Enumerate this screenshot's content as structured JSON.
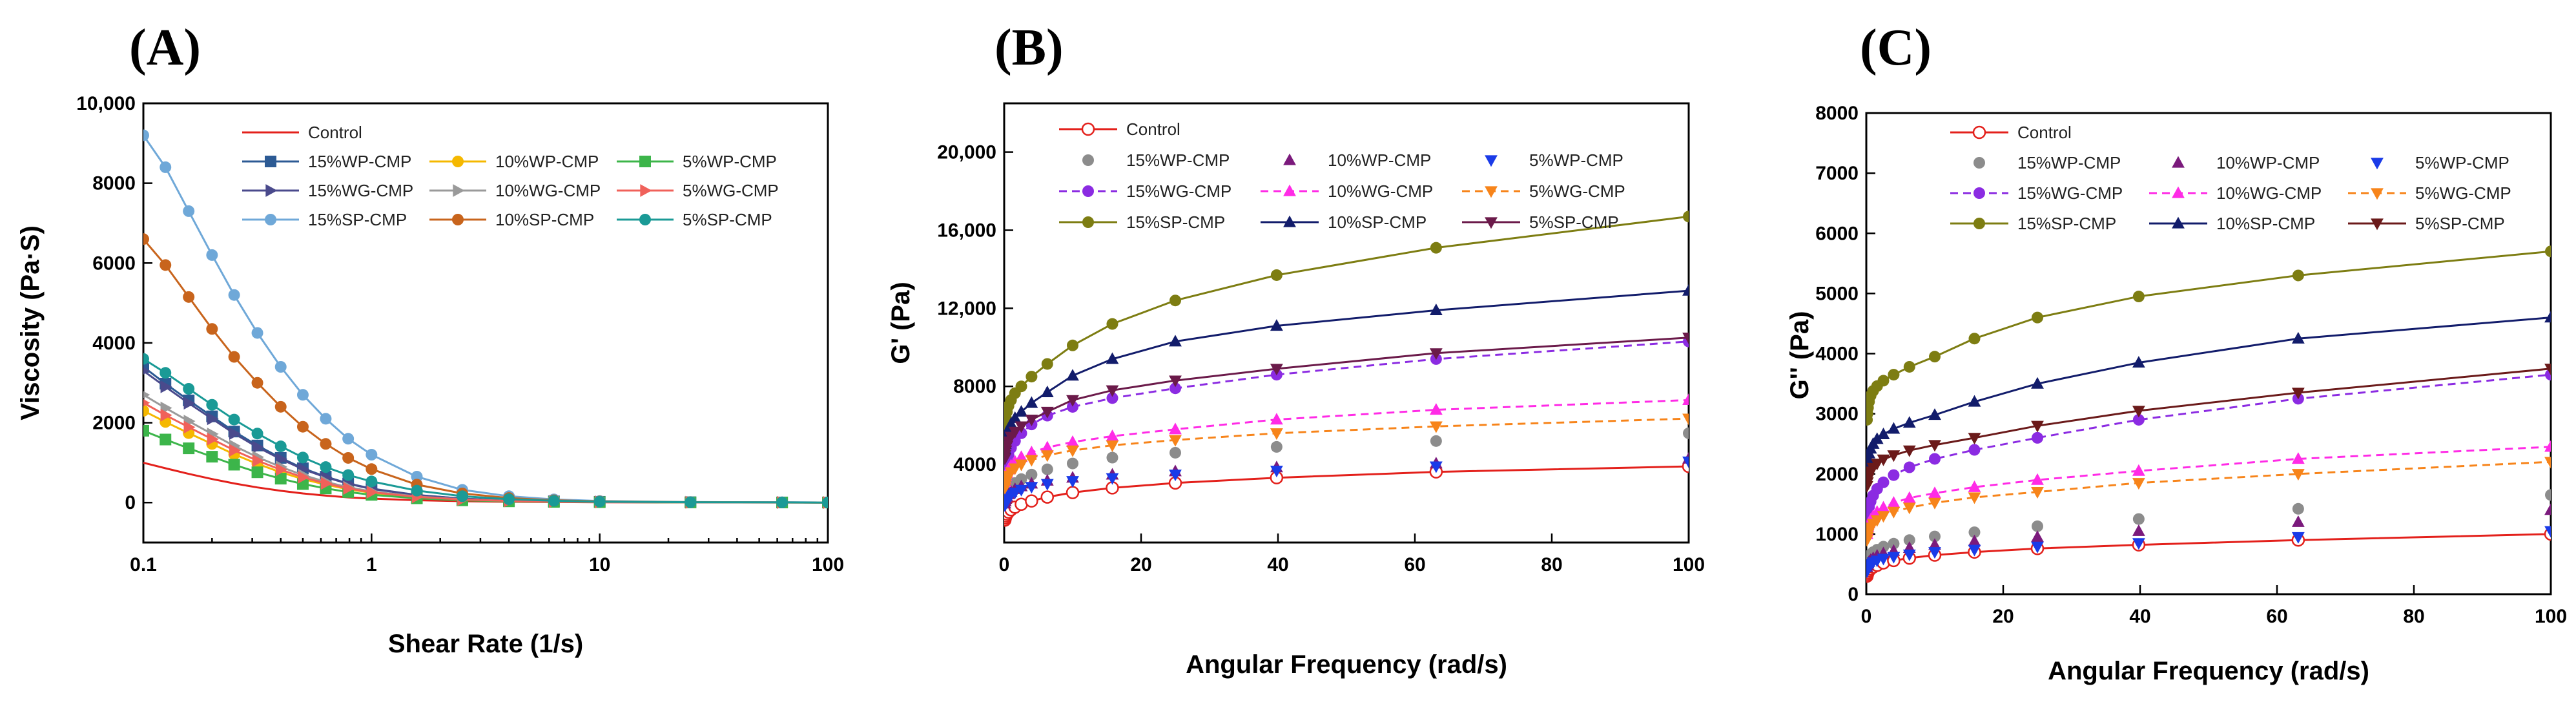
{
  "chart_data": [
    {
      "panel": "(A)",
      "type": "line",
      "xscale": "log",
      "xlabel": "Shear Rate (1/s)",
      "ylabel": "Viscosity (Pa·S)",
      "xlim": [
        0.1,
        100
      ],
      "ylim": [
        -1000,
        10000
      ],
      "xticks": [
        {
          "v": 0.1,
          "label": "0.1"
        },
        {
          "v": 1,
          "label": "1"
        },
        {
          "v": 10,
          "label": "10"
        },
        {
          "v": 100,
          "label": "100"
        }
      ],
      "yticks": [
        {
          "v": 0,
          "label": "0"
        },
        {
          "v": 2000,
          "label": "2000"
        },
        {
          "v": 4000,
          "label": "4000"
        },
        {
          "v": 6000,
          "label": "6000"
        },
        {
          "v": 8000,
          "label": "8000"
        },
        {
          "v": 10000,
          "label": "10,000"
        }
      ],
      "legend_position": "top-center",
      "x": [
        0.1,
        0.125,
        0.158,
        0.2,
        0.25,
        0.316,
        0.4,
        0.5,
        0.63,
        0.79,
        1.0,
        1.58,
        2.5,
        4.0,
        6.3,
        10,
        25,
        63,
        100
      ],
      "series": [
        {
          "name": "Control",
          "color": "#e3201b",
          "marker": "none",
          "values": [
            1000,
            860,
            720,
            590,
            480,
            380,
            295,
            230,
            175,
            130,
            100,
            60,
            35,
            20,
            12,
            8,
            4,
            2,
            1
          ]
        },
        {
          "name": "15%WP-CMP",
          "color": "#2c5a94",
          "marker": "square",
          "values": [
            3400,
            2980,
            2560,
            2160,
            1780,
            1430,
            1120,
            860,
            650,
            480,
            350,
            190,
            100,
            55,
            32,
            20,
            9,
            4,
            3
          ]
        },
        {
          "name": "10%WP-CMP",
          "color": "#f5b800",
          "marker": "circle",
          "values": [
            2300,
            2020,
            1740,
            1470,
            1210,
            970,
            760,
            590,
            450,
            335,
            245,
            135,
            72,
            40,
            24,
            15,
            7,
            3,
            2
          ]
        },
        {
          "name": "5%WP-CMP",
          "color": "#3cb54a",
          "marker": "square",
          "values": [
            1800,
            1580,
            1360,
            1150,
            950,
            760,
            600,
            465,
            355,
            265,
            195,
            108,
            58,
            32,
            19,
            12,
            5,
            3,
            2
          ]
        },
        {
          "name": "15%WG-CMP",
          "color": "#4a4a8c",
          "marker": "tri-right",
          "values": [
            3300,
            2900,
            2490,
            2100,
            1730,
            1390,
            1090,
            840,
            635,
            470,
            343,
            188,
            100,
            55,
            32,
            20,
            9,
            4,
            3
          ]
        },
        {
          "name": "10%WG-CMP",
          "color": "#9a9a9a",
          "marker": "tri-right",
          "values": [
            2700,
            2370,
            2040,
            1720,
            1420,
            1140,
            895,
            690,
            520,
            385,
            280,
            154,
            82,
            45,
            26,
            16,
            7,
            3,
            2
          ]
        },
        {
          "name": "5%WG-CMP",
          "color": "#f0615a",
          "marker": "tri-right",
          "values": [
            2500,
            2190,
            1890,
            1590,
            1310,
            1050,
            825,
            636,
            480,
            355,
            260,
            143,
            76,
            42,
            25,
            15,
            7,
            3,
            2
          ]
        },
        {
          "name": "15%SP-CMP",
          "color": "#6fa8d8",
          "marker": "circle",
          "values": [
            9200,
            8400,
            7300,
            6200,
            5200,
            4250,
            3400,
            2700,
            2100,
            1600,
            1200,
            650,
            320,
            160,
            80,
            40,
            15,
            6,
            3
          ]
        },
        {
          "name": "10%SP-CMP",
          "color": "#c8641c",
          "marker": "circle",
          "values": [
            6600,
            5950,
            5150,
            4350,
            3650,
            3000,
            2400,
            1900,
            1470,
            1120,
            840,
            450,
            230,
            115,
            58,
            30,
            11,
            4,
            2
          ]
        },
        {
          "name": "5%SP-CMP",
          "color": "#1a9a96",
          "marker": "circle",
          "values": [
            3600,
            3250,
            2850,
            2450,
            2080,
            1730,
            1410,
            1130,
            890,
            690,
            530,
            300,
            160,
            85,
            45,
            24,
            9,
            4,
            2
          ]
        }
      ]
    },
    {
      "panel": "(B)",
      "type": "line",
      "xlabel": "Angular Frequency (rad/s)",
      "ylabel": "G' (Pa)",
      "xlim": [
        0,
        100
      ],
      "ylim": [
        0,
        22500
      ],
      "xticks": [
        {
          "v": 0,
          "label": "0"
        },
        {
          "v": 20,
          "label": "20"
        },
        {
          "v": 40,
          "label": "40"
        },
        {
          "v": 60,
          "label": "60"
        },
        {
          "v": 80,
          "label": "80"
        },
        {
          "v": 100,
          "label": "100"
        }
      ],
      "yticks": [
        {
          "v": 4000,
          "label": "4000"
        },
        {
          "v": 8000,
          "label": "8000"
        },
        {
          "v": 12000,
          "label": "12,000"
        },
        {
          "v": 16000,
          "label": "16,000"
        },
        {
          "v": 20000,
          "label": "20,000"
        }
      ],
      "legend_position": "top-left",
      "x": [
        0.1,
        0.16,
        0.25,
        0.4,
        0.63,
        1.0,
        1.58,
        2.5,
        4.0,
        6.3,
        10,
        15.8,
        25,
        39.8,
        63.1,
        100
      ],
      "series": [
        {
          "name": "Control",
          "color": "#e3201b",
          "marker": "open-circle",
          "line": "solid",
          "values": [
            1150,
            1250,
            1350,
            1450,
            1560,
            1680,
            1810,
            1960,
            2130,
            2330,
            2560,
            2800,
            3050,
            3320,
            3620,
            3900
          ]
        },
        {
          "name": "15%WP-CMP",
          "color": "#8c8c8c",
          "marker": "circle",
          "line": "none",
          "values": [
            2100,
            2250,
            2400,
            2550,
            2700,
            2870,
            3050,
            3250,
            3480,
            3750,
            4050,
            4350,
            4600,
            4900,
            5200,
            5600
          ]
        },
        {
          "name": "10%WP-CMP",
          "color": "#7b1a7c",
          "marker": "triangle",
          "line": "none",
          "values": [
            2000,
            2120,
            2240,
            2350,
            2480,
            2600,
            2740,
            2880,
            3020,
            3170,
            3320,
            3480,
            3650,
            3850,
            4050,
            4300
          ]
        },
        {
          "name": "5%WP-CMP",
          "color": "#1a3be8",
          "marker": "tri-down",
          "line": "none",
          "values": [
            1900,
            2000,
            2100,
            2200,
            2320,
            2440,
            2560,
            2700,
            2850,
            3000,
            3150,
            3300,
            3480,
            3680,
            3900,
            4150
          ]
        },
        {
          "name": "15%WG-CMP",
          "color": "#8b2be2",
          "marker": "circle",
          "line": "dashed",
          "values": [
            3500,
            3700,
            3950,
            4200,
            4500,
            4850,
            5200,
            5600,
            6050,
            6500,
            6950,
            7400,
            7900,
            8600,
            9400,
            10300
          ]
        },
        {
          "name": "10%WG-CMP",
          "color": "#ff2be6",
          "marker": "triangle",
          "line": "dashed",
          "values": [
            3100,
            3250,
            3400,
            3570,
            3750,
            3950,
            4150,
            4380,
            4620,
            4870,
            5150,
            5450,
            5800,
            6300,
            6800,
            7300
          ]
        },
        {
          "name": "5%WG-CMP",
          "color": "#f7841a",
          "marker": "tri-down",
          "line": "dashed",
          "values": [
            2800,
            2950,
            3100,
            3260,
            3430,
            3600,
            3800,
            4000,
            4230,
            4470,
            4720,
            4980,
            5250,
            5600,
            5950,
            6350
          ]
        },
        {
          "name": "15%SP-CMP",
          "color": "#7d7d12",
          "marker": "circle",
          "line": "solid",
          "values": [
            5800,
            6100,
            6400,
            6700,
            7000,
            7300,
            7650,
            8000,
            8500,
            9150,
            10100,
            11200,
            12400,
            13700,
            15100,
            16700
          ]
        },
        {
          "name": "10%SP-CMP",
          "color": "#121c6b",
          "marker": "triangle",
          "line": "solid",
          "values": [
            4800,
            5050,
            5300,
            5560,
            5820,
            6080,
            6380,
            6700,
            7150,
            7700,
            8550,
            9400,
            10300,
            11100,
            11900,
            12900
          ]
        },
        {
          "name": "5%SP-CMP",
          "color": "#6b1a4a",
          "marker": "tri-down",
          "line": "solid",
          "values": [
            4300,
            4500,
            4720,
            4950,
            5180,
            5420,
            5680,
            5950,
            6300,
            6700,
            7300,
            7800,
            8300,
            8900,
            9700,
            10500
          ]
        }
      ]
    },
    {
      "panel": "(C)",
      "type": "line",
      "xlabel": "Angular Frequency (rad/s)",
      "ylabel": "G'' (Pa)",
      "xlim": [
        0,
        100
      ],
      "ylim": [
        0,
        8000
      ],
      "xticks": [
        {
          "v": 0,
          "label": "0"
        },
        {
          "v": 20,
          "label": "20"
        },
        {
          "v": 40,
          "label": "40"
        },
        {
          "v": 60,
          "label": "60"
        },
        {
          "v": 80,
          "label": "80"
        },
        {
          "v": 100,
          "label": "100"
        }
      ],
      "yticks": [
        {
          "v": 0,
          "label": "0"
        },
        {
          "v": 1000,
          "label": "1000"
        },
        {
          "v": 2000,
          "label": "2000"
        },
        {
          "v": 3000,
          "label": "3000"
        },
        {
          "v": 4000,
          "label": "4000"
        },
        {
          "v": 5000,
          "label": "5000"
        },
        {
          "v": 6000,
          "label": "6000"
        },
        {
          "v": 7000,
          "label": "7000"
        },
        {
          "v": 8000,
          "label": "8000"
        }
      ],
      "legend_position": "top-left",
      "x": [
        0.1,
        0.16,
        0.25,
        0.4,
        0.63,
        1.0,
        1.58,
        2.5,
        4.0,
        6.3,
        10,
        15.8,
        25,
        39.8,
        63.1,
        100
      ],
      "series": [
        {
          "name": "Control",
          "color": "#e3201b",
          "marker": "open-circle",
          "line": "solid",
          "values": [
            300,
            330,
            360,
            390,
            420,
            450,
            480,
            520,
            560,
            600,
            650,
            700,
            760,
            820,
            900,
            1000
          ]
        },
        {
          "name": "15%WP-CMP",
          "color": "#8c8c8c",
          "marker": "circle",
          "line": "none",
          "values": [
            500,
            540,
            580,
            620,
            660,
            700,
            740,
            790,
            840,
            900,
            960,
            1030,
            1130,
            1250,
            1420,
            1650
          ]
        },
        {
          "name": "10%WP-CMP",
          "color": "#7b1a7c",
          "marker": "triangle",
          "line": "none",
          "values": [
            450,
            480,
            510,
            540,
            570,
            600,
            640,
            680,
            720,
            770,
            820,
            880,
            950,
            1050,
            1200,
            1400
          ]
        },
        {
          "name": "5%WP-CMP",
          "color": "#1a3be8",
          "marker": "tri-down",
          "line": "none",
          "values": [
            380,
            410,
            440,
            470,
            500,
            530,
            560,
            590,
            620,
            660,
            700,
            740,
            790,
            850,
            950,
            1050
          ]
        },
        {
          "name": "15%WG-CMP",
          "color": "#8b2be2",
          "marker": "circle",
          "line": "dashed",
          "values": [
            1200,
            1280,
            1360,
            1450,
            1540,
            1640,
            1750,
            1860,
            1980,
            2110,
            2250,
            2400,
            2600,
            2900,
            3250,
            3650
          ]
        },
        {
          "name": "10%WG-CMP",
          "color": "#ff2be6",
          "marker": "triangle",
          "line": "dashed",
          "values": [
            1000,
            1060,
            1120,
            1180,
            1240,
            1300,
            1370,
            1440,
            1520,
            1600,
            1680,
            1780,
            1900,
            2050,
            2250,
            2450
          ]
        },
        {
          "name": "5%WG-CMP",
          "color": "#f7841a",
          "marker": "tri-down",
          "line": "dashed",
          "values": [
            900,
            950,
            1000,
            1050,
            1110,
            1170,
            1230,
            1300,
            1370,
            1440,
            1520,
            1610,
            1700,
            1850,
            2000,
            2200
          ]
        },
        {
          "name": "15%SP-CMP",
          "color": "#7d7d12",
          "marker": "circle",
          "line": "solid",
          "values": [
            2900,
            3000,
            3100,
            3200,
            3300,
            3380,
            3460,
            3550,
            3650,
            3780,
            3950,
            4250,
            4600,
            4950,
            5300,
            5700
          ]
        },
        {
          "name": "10%SP-CMP",
          "color": "#121c6b",
          "marker": "triangle",
          "line": "solid",
          "values": [
            2100,
            2180,
            2260,
            2340,
            2420,
            2500,
            2580,
            2660,
            2750,
            2850,
            2980,
            3200,
            3500,
            3850,
            4250,
            4600
          ]
        },
        {
          "name": "5%SP-CMP",
          "color": "#6b1a1a",
          "marker": "tri-down",
          "line": "solid",
          "values": [
            1800,
            1860,
            1920,
            1980,
            2040,
            2100,
            2170,
            2240,
            2310,
            2390,
            2480,
            2600,
            2800,
            3050,
            3350,
            3750
          ]
        }
      ]
    }
  ]
}
